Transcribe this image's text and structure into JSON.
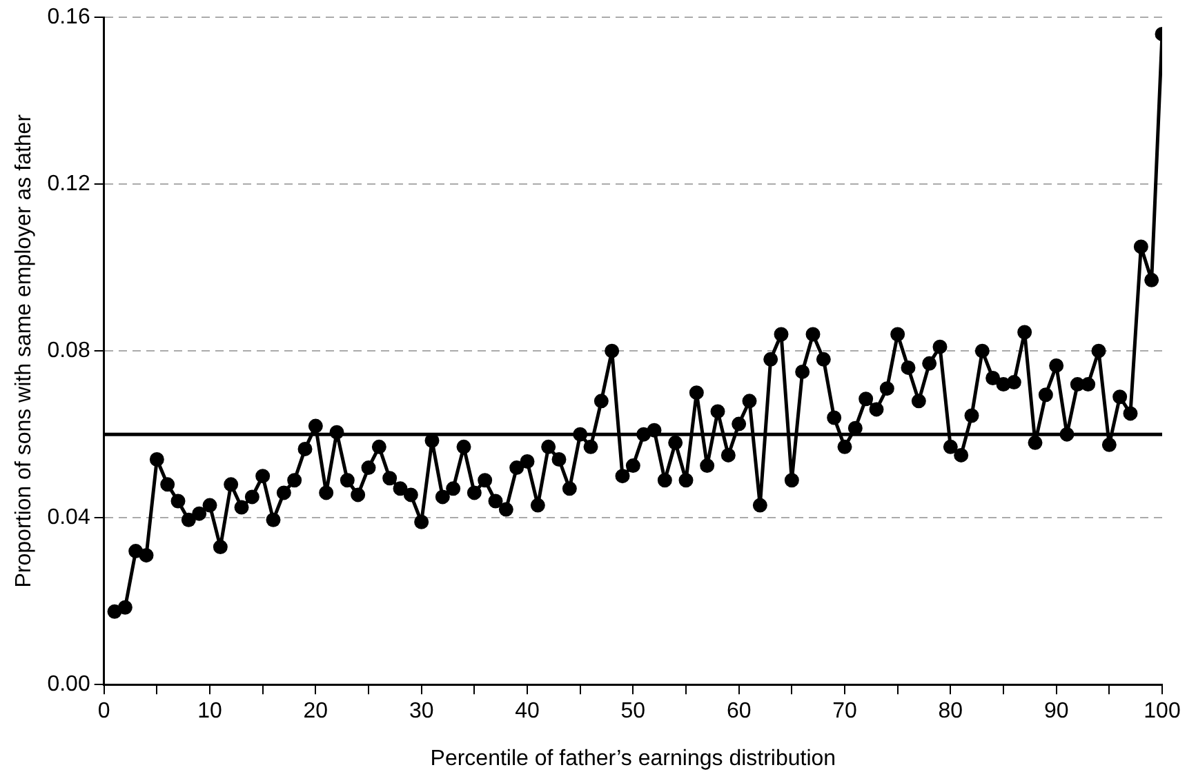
{
  "chart_data": {
    "type": "line",
    "xlabel": "Percentile of father’s earnings distribution",
    "ylabel": "Proportion of sons with same employer as father",
    "x": [
      1,
      2,
      3,
      4,
      5,
      6,
      7,
      8,
      9,
      10,
      11,
      12,
      13,
      14,
      15,
      16,
      17,
      18,
      19,
      20,
      21,
      22,
      23,
      24,
      25,
      26,
      27,
      28,
      29,
      30,
      31,
      32,
      33,
      34,
      35,
      36,
      37,
      38,
      39,
      40,
      41,
      42,
      43,
      44,
      45,
      46,
      47,
      48,
      49,
      50,
      51,
      52,
      53,
      54,
      55,
      56,
      57,
      58,
      59,
      60,
      61,
      62,
      63,
      64,
      65,
      66,
      67,
      68,
      69,
      70,
      71,
      72,
      73,
      74,
      75,
      76,
      77,
      78,
      79,
      80,
      81,
      82,
      83,
      84,
      85,
      86,
      87,
      88,
      89,
      90,
      91,
      92,
      93,
      94,
      95,
      96,
      97,
      98,
      99,
      100
    ],
    "series": [
      {
        "color": "#000000",
        "values": [
          0.0175,
          0.0185,
          0.032,
          0.031,
          0.054,
          0.048,
          0.044,
          0.0395,
          0.041,
          0.043,
          0.033,
          0.048,
          0.0425,
          0.045,
          0.05,
          0.0395,
          0.046,
          0.049,
          0.0565,
          0.062,
          0.046,
          0.0605,
          0.049,
          0.0455,
          0.052,
          0.057,
          0.0495,
          0.047,
          0.0455,
          0.039,
          0.0585,
          0.045,
          0.047,
          0.057,
          0.046,
          0.049,
          0.044,
          0.042,
          0.052,
          0.0535,
          0.043,
          0.057,
          0.054,
          0.047,
          0.06,
          0.057,
          0.068,
          0.08,
          0.05,
          0.0525,
          0.06,
          0.061,
          0.049,
          0.058,
          0.049,
          0.07,
          0.0525,
          0.0655,
          0.055,
          0.0625,
          0.068,
          0.043,
          0.078,
          0.084,
          0.049,
          0.075,
          0.084,
          0.078,
          0.064,
          0.057,
          0.0615,
          0.0685,
          0.066,
          0.071,
          0.084,
          0.076,
          0.068,
          0.077,
          0.081,
          0.057,
          0.055,
          0.0645,
          0.08,
          0.0735,
          0.072,
          0.0725,
          0.0845,
          0.058,
          0.0695,
          0.0765,
          0.06,
          0.072,
          0.072,
          0.08,
          0.0575,
          0.069,
          0.065,
          0.105,
          0.097,
          0.156
        ]
      }
    ],
    "xlim": [
      0,
      100
    ],
    "xticks": [
      0,
      {
        "value": 5,
        "label": null
      },
      10,
      {
        "value": 15,
        "label": null
      },
      20,
      {
        "value": 25,
        "label": null
      },
      30,
      {
        "value": 35,
        "label": null
      },
      40,
      {
        "value": 45,
        "label": null
      },
      50,
      {
        "value": 55,
        "label": null
      },
      60,
      {
        "value": 65,
        "label": null
      },
      70,
      {
        "value": 75,
        "label": null
      },
      80,
      {
        "value": 85,
        "label": null
      },
      90,
      {
        "value": 95,
        "label": null
      },
      100
    ],
    "ylim": [
      0,
      0.16
    ],
    "yticks": [
      {
        "value": 0,
        "label": "0.00"
      },
      0.04,
      0.08,
      0.12,
      0.16
    ],
    "ref_lines": [
      {
        "axis": "y",
        "value": 0.06,
        "color": "#000000"
      }
    ],
    "grid": "y",
    "marker": "circle",
    "line_style": "solid"
  }
}
